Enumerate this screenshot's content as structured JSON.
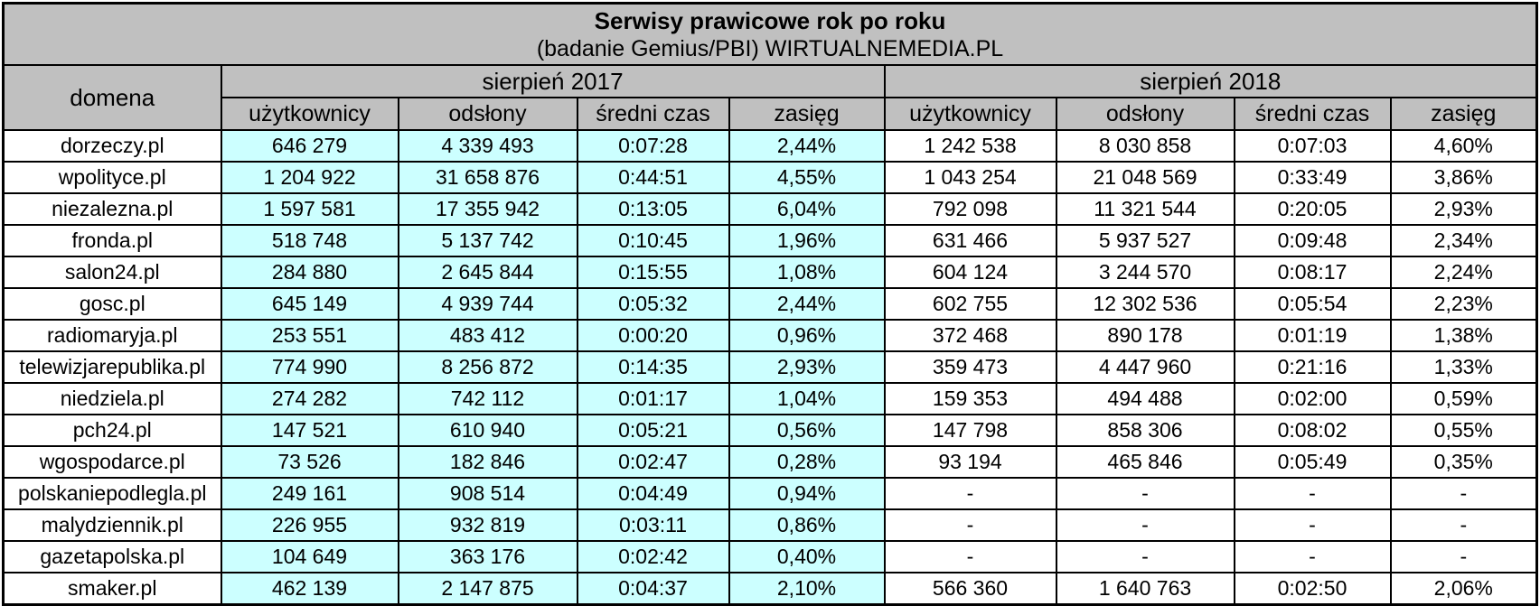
{
  "chart_data": {
    "type": "table",
    "title": "Serwisy prawicowe rok po roku",
    "subtitle": "(badanie Gemius/PBI) WIRTUALNEMEDIA.PL",
    "domain_column_header": "domena",
    "column_groups": [
      "sierpień 2017",
      "sierpień 2018"
    ],
    "metric_headers": [
      "użytkownicy",
      "odsłony",
      "średni czas",
      "zasięg"
    ],
    "rows": [
      [
        "dorzeczy.pl",
        "646 279",
        "4 339 493",
        "0:07:28",
        "2,44%",
        "1 242 538",
        "8 030 858",
        "0:07:03",
        "4,60%"
      ],
      [
        "wpolityce.pl",
        "1 204 922",
        "31 658 876",
        "0:44:51",
        "4,55%",
        "1 043 254",
        "21 048 569",
        "0:33:49",
        "3,86%"
      ],
      [
        "niezalezna.pl",
        "1 597 581",
        "17 355 942",
        "0:13:05",
        "6,04%",
        "792 098",
        "11 321 544",
        "0:20:05",
        "2,93%"
      ],
      [
        "fronda.pl",
        "518 748",
        "5 137 742",
        "0:10:45",
        "1,96%",
        "631 466",
        "5 937 527",
        "0:09:48",
        "2,34%"
      ],
      [
        "salon24.pl",
        "284 880",
        "2 645 844",
        "0:15:55",
        "1,08%",
        "604 124",
        "3 244 570",
        "0:08:17",
        "2,24%"
      ],
      [
        "gosc.pl",
        "645 149",
        "4 939 744",
        "0:05:32",
        "2,44%",
        "602 755",
        "12 302 536",
        "0:05:54",
        "2,23%"
      ],
      [
        "radiomaryja.pl",
        "253 551",
        "483 412",
        "0:00:20",
        "0,96%",
        "372 468",
        "890 178",
        "0:01:19",
        "1,38%"
      ],
      [
        "telewizjarepublika.pl",
        "774 990",
        "8 256 872",
        "0:14:35",
        "2,93%",
        "359 473",
        "4 447 960",
        "0:21:16",
        "1,33%"
      ],
      [
        "niedziela.pl",
        "274 282",
        "742 112",
        "0:01:17",
        "1,04%",
        "159 353",
        "494 488",
        "0:02:00",
        "0,59%"
      ],
      [
        "pch24.pl",
        "147 521",
        "610 940",
        "0:05:21",
        "0,56%",
        "147 798",
        "858 306",
        "0:08:02",
        "0,55%"
      ],
      [
        "wgospodarce.pl",
        "73 526",
        "182 846",
        "0:02:47",
        "0,28%",
        "93 194",
        "465 846",
        "0:05:49",
        "0,35%"
      ],
      [
        "polskaniepodlegla.pl",
        "249 161",
        "908 514",
        "0:04:49",
        "0,94%",
        "-",
        "-",
        "-",
        "-"
      ],
      [
        "malydziennik.pl",
        "226 955",
        "932 819",
        "0:03:11",
        "0,86%",
        "-",
        "-",
        "-",
        "-"
      ],
      [
        "gazetapolska.pl",
        "104 649",
        "363 176",
        "0:02:42",
        "0,40%",
        "-",
        "-",
        "-",
        "-"
      ],
      [
        "smaker.pl",
        "462 139",
        "2 147 875",
        "0:04:37",
        "2,10%",
        "566 360",
        "1 640 763",
        "0:02:50",
        "2,06%"
      ]
    ]
  },
  "colors": {
    "header_bg": "#c0c0c0",
    "band_2017_bg": "#ccffff",
    "band_2018_bg": "#ffffff",
    "border": "#000000",
    "text": "#000000"
  }
}
